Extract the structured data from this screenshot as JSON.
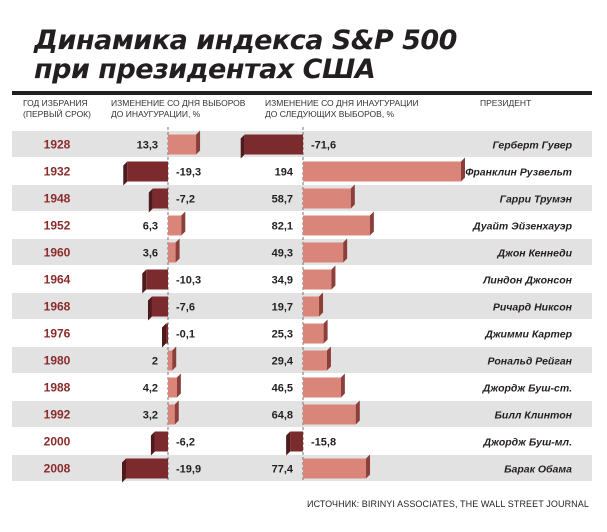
{
  "title_line1": "Динамика индекса S&P 500",
  "title_line2": "при президентах США",
  "headers": {
    "year": "ГОД ИЗБРАНИЯ\n(ПЕРВЫЙ СРОК)",
    "change_pre": "ИЗМЕНЕНИЕ СО ДНЯ ВЫБОРОВ\nДО ИНАУГУРАЦИИ, %",
    "change_post": "ИЗМЕНЕНИЕ СО ДНЯ ИНАУГУРАЦИИ\nДО СЛЕДУЮЩИХ ВЫБОРОВ, %",
    "president": "ПРЕЗИДЕНТ"
  },
  "source": "ИСТОЧНИК: BIRINYI ASSOCIATES, THE WALL STREET JOURNAL",
  "colors": {
    "positive": "#d9857a",
    "positive_side": "#8a3f3a",
    "negative": "#7b2a2d",
    "negative_side": "#4e1a1c",
    "stripe": "#e2e2e2",
    "year_text": "#8b2b2b"
  },
  "chart_data": {
    "type": "bar",
    "categories": [
      "1928",
      "1932",
      "1948",
      "1952",
      "1960",
      "1964",
      "1968",
      "1976",
      "1980",
      "1988",
      "1992",
      "2000",
      "2008"
    ],
    "presidents": [
      "Герберт Гувер",
      "Франклин Рузвельт",
      "Гарри Трумэн",
      "Дуайт Эйзенхауэр",
      "Джон Кеннеди",
      "Линдон Джонсон",
      "Ричард Никсон",
      "Джимми Картер",
      "Рональд Рейган",
      "Джордж Буш-ст.",
      "Билл Клинтон",
      "Джордж Буш-мл.",
      "Барак Обама"
    ],
    "series": [
      {
        "values": [
          13.3,
          -19.3,
          -7.2,
          6.3,
          3.6,
          -10.3,
          -7.6,
          -0.1,
          2,
          4.2,
          3.2,
          -6.2,
          -19.9
        ],
        "labels": [
          "13,3",
          "-19,3",
          "-7,2",
          "6,3",
          "3,6",
          "-10,3",
          "-7,6",
          "-0,1",
          "2",
          "4,2",
          "3,2",
          "-6,2",
          "-19,9"
        ]
      },
      {
        "values": [
          -71.6,
          194,
          58.7,
          82.1,
          49.3,
          34.9,
          19.7,
          25.3,
          29.4,
          46.5,
          64.8,
          -15.8,
          77.4
        ],
        "labels": [
          "-71,6",
          "194",
          "58,7",
          "82,1",
          "49,3",
          "34,9",
          "19,7",
          "25,3",
          "29,4",
          "46,5",
          "64,8",
          "-15,8",
          "77,4"
        ]
      }
    ]
  }
}
